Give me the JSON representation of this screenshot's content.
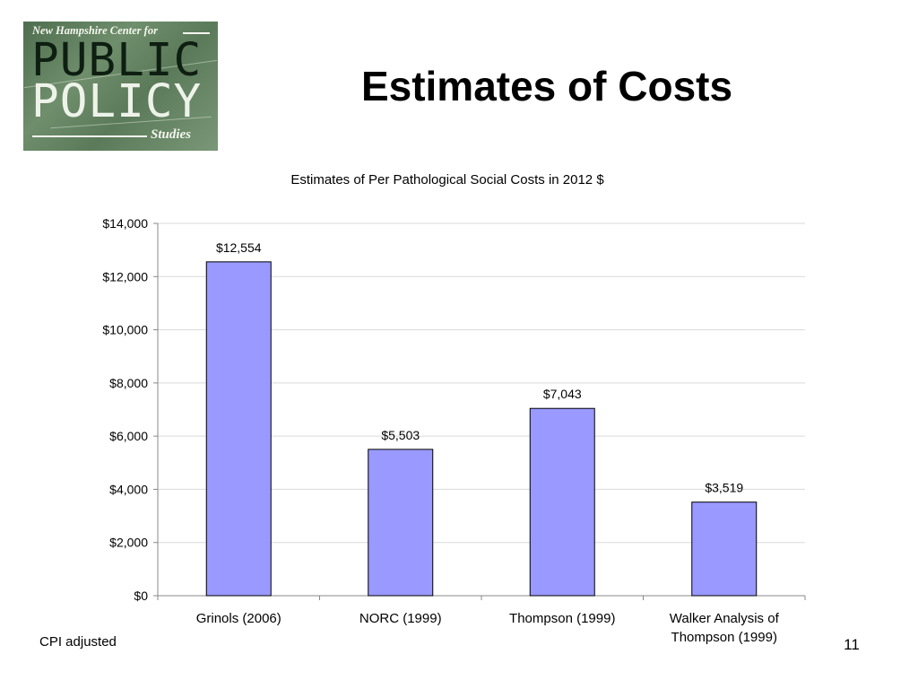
{
  "slide": {
    "title": "Estimates of Costs",
    "footnote": "CPI adjusted",
    "page_number": "11"
  },
  "logo": {
    "top_text": "New Hampshire Center for",
    "word1": "PUBLIC",
    "word2": "POLICY",
    "bottom_text": "Studies"
  },
  "chart_data": {
    "type": "bar",
    "title": "Estimates of Per Pathological Social Costs in 2012 $",
    "xlabel": "",
    "ylabel": "",
    "categories": [
      [
        "Grinols (2006)"
      ],
      [
        "NORC (1999)"
      ],
      [
        "Thompson (1999)"
      ],
      [
        "Walker Analysis of",
        "Thompson (1999)"
      ]
    ],
    "values": [
      12554,
      5503,
      7043,
      3519
    ],
    "data_labels": [
      "$12,554",
      "$5,503",
      "$7,043",
      "$3,519"
    ],
    "ylim": [
      0,
      14000
    ],
    "yticks": [
      0,
      2000,
      4000,
      6000,
      8000,
      10000,
      12000,
      14000
    ],
    "ytick_labels": [
      "$0",
      "$2,000",
      "$4,000",
      "$6,000",
      "$8,000",
      "$10,000",
      "$12,000",
      "$14,000"
    ],
    "grid": true,
    "legend": "none",
    "bar_color": "#9999ff",
    "bar_edge_color": "#000000"
  }
}
